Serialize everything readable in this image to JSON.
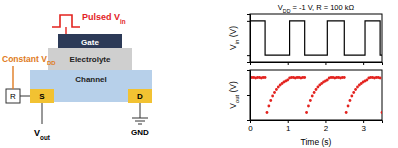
{
  "diagram": {
    "pulse_label": [
      {
        "text": "Pulsed "
      },
      {
        "text": "V"
      },
      {
        "text": "in",
        "sub": true
      }
    ],
    "gate": "Gate",
    "electrolyte": "Electrolyte",
    "channel": "Channel",
    "source": "S",
    "drain": "D",
    "resistor": "R",
    "supply_label": [
      {
        "text": "Constant "
      },
      {
        "text": "V"
      },
      {
        "text": "DD",
        "sub": true
      }
    ],
    "output_label": [
      {
        "text": "V"
      },
      {
        "text": "out",
        "sub": true
      }
    ],
    "ground": "GND"
  },
  "chart_data": [
    {
      "type": "line",
      "title": [
        {
          "text": "V"
        },
        {
          "text": "DD",
          "sub": true
        },
        {
          "text": " = -1 V, R = 100 kΩ"
        }
      ],
      "y_label": [
        {
          "text": "V"
        },
        {
          "text": "in",
          "sub": true
        },
        {
          "text": " (V)"
        }
      ],
      "x": [
        0,
        0.4,
        0.4,
        1.05,
        1.05,
        1.45,
        1.45,
        2.05,
        2.05,
        2.5,
        2.5,
        3.05,
        3.05,
        3.45,
        3.45,
        3.5
      ],
      "values": [
        0,
        0,
        -1,
        -1,
        0,
        0,
        -1,
        -1,
        0,
        0,
        -1,
        -1,
        0,
        0,
        -1,
        -1
      ],
      "color": "#000000",
      "xlim": [
        0,
        3.5
      ],
      "xticks": [
        0,
        1,
        2,
        3
      ],
      "ylim": [
        -1.2,
        0.2
      ],
      "yticks": [
        -1,
        0
      ],
      "tick_labels": false
    },
    {
      "type": "scatter",
      "x_label": "Time (s)",
      "y_label": [
        {
          "text": "V"
        },
        {
          "text": "out",
          "sub": true
        },
        {
          "text": " (V)"
        }
      ],
      "x": [
        0,
        0.05,
        0.1,
        0.15,
        0.2,
        0.25,
        0.3,
        0.35,
        0.4,
        0.45,
        0.5,
        0.55,
        0.6,
        0.65,
        0.7,
        0.75,
        0.8,
        0.85,
        0.9,
        0.95,
        1,
        1.05,
        1.1,
        1.15,
        1.2,
        1.25,
        1.3,
        1.35,
        1.4,
        1.45,
        1.5,
        1.55,
        1.6,
        1.65,
        1.7,
        1.75,
        1.8,
        1.85,
        1.9,
        1.95,
        2,
        2.05,
        2.1,
        2.15,
        2.2,
        2.25,
        2.3,
        2.35,
        2.4,
        2.45,
        2.5,
        2.55,
        2.6,
        2.65,
        2.7,
        2.75,
        2.8,
        2.85,
        2.9,
        2.95,
        3,
        3.05,
        3.1,
        3.15,
        3.2,
        3.25,
        3.3,
        3.35,
        3.4,
        3.45,
        3.5
      ],
      "values": [
        -0.16,
        -0.15,
        -0.15,
        -0.16,
        -0.15,
        -0.15,
        -0.16,
        -0.15,
        -0.15,
        -0.85,
        -0.72,
        -0.61,
        -0.52,
        -0.45,
        -0.39,
        -0.34,
        -0.3,
        -0.27,
        -0.24,
        -0.22,
        -0.2,
        -0.16,
        -0.15,
        -0.15,
        -0.16,
        -0.15,
        -0.15,
        -0.16,
        -0.15,
        -0.15,
        -0.85,
        -0.72,
        -0.61,
        -0.52,
        -0.45,
        -0.39,
        -0.34,
        -0.3,
        -0.27,
        -0.24,
        -0.22,
        -0.2,
        -0.16,
        -0.15,
        -0.15,
        -0.16,
        -0.15,
        -0.15,
        -0.16,
        -0.15,
        -0.15,
        -0.85,
        -0.72,
        -0.61,
        -0.52,
        -0.45,
        -0.39,
        -0.34,
        -0.3,
        -0.27,
        -0.24,
        -0.22,
        -0.2,
        -0.16,
        -0.15,
        -0.15,
        -0.16,
        -0.15,
        -0.15,
        -0.16,
        -0.85
      ],
      "color": "#e3231f",
      "marker": "circle",
      "xlim": [
        0,
        3.5
      ],
      "xticks": [
        0,
        1,
        2,
        3
      ],
      "ylim": [
        -1,
        0
      ],
      "yticks": [
        -1,
        -0.5,
        0
      ],
      "tick_labels": "x"
    }
  ]
}
